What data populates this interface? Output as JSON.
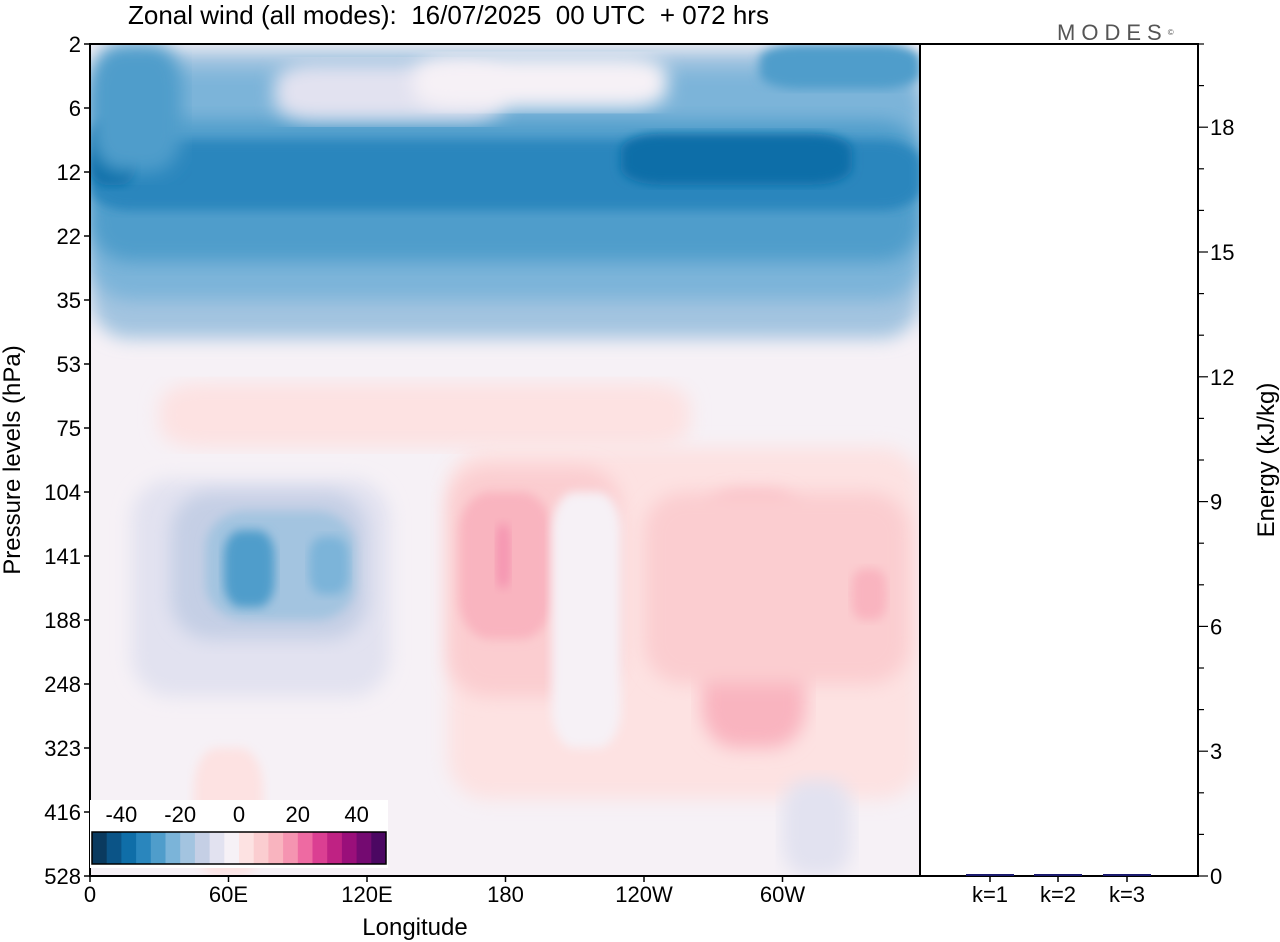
{
  "title": "Zonal wind (all modes):  16/07/2025  00 UTC  + 072 hrs",
  "brand": "MODES",
  "brand_mark": "©",
  "chart_data": [
    {
      "type": "heatmap",
      "xlabel": "Longitude",
      "ylabel": "Pressure levels (hPa)",
      "x_ticks": [
        "0",
        "60E",
        "120E",
        "180",
        "120W",
        "60W"
      ],
      "y_ticks": [
        "2",
        "6",
        "12",
        "22",
        "35",
        "53",
        "75",
        "104",
        "141",
        "188",
        "248",
        "323",
        "416",
        "528"
      ],
      "colorbar": {
        "ticks": [
          "-40",
          "-20",
          "0",
          "20",
          "40"
        ],
        "min": -50,
        "max": 50,
        "step": 5,
        "colors": [
          "#0a3a5f",
          "#0b5487",
          "#0f6ea8",
          "#2a86bd",
          "#4f9dcb",
          "#7bb4d9",
          "#a3c4e0",
          "#c5cfe5",
          "#e2e2f0",
          "#f6f1f6",
          "#fde2e2",
          "#fbcdd0",
          "#f9b4bf",
          "#f594b1",
          "#ee6aa2",
          "#db3f92",
          "#bf2283",
          "#9a0f7a",
          "#740a71",
          "#4b0762"
        ]
      },
      "notes": "Longitude-pressure cross section of zonal wind (m/s): strong easterlies (-25 to -45) between 6 and 35 hPa across all longitudes; weak westerlies (+5 to +20) near 100-300 hPa from ~150E to ~30W; easterly cells (-15 to -30) near 60E-110E at 104-188 hPa."
    },
    {
      "type": "bar",
      "categories": [
        "k=1",
        "k=2",
        "k=3"
      ],
      "values": [
        0.03,
        0.01,
        0.01
      ],
      "ylabel": "Energy (kJ/kg)",
      "ylim": [
        0,
        20
      ],
      "y_ticks": [
        0,
        3,
        6,
        9,
        12,
        15,
        18
      ],
      "bar_color": "#1a1a6e"
    }
  ]
}
